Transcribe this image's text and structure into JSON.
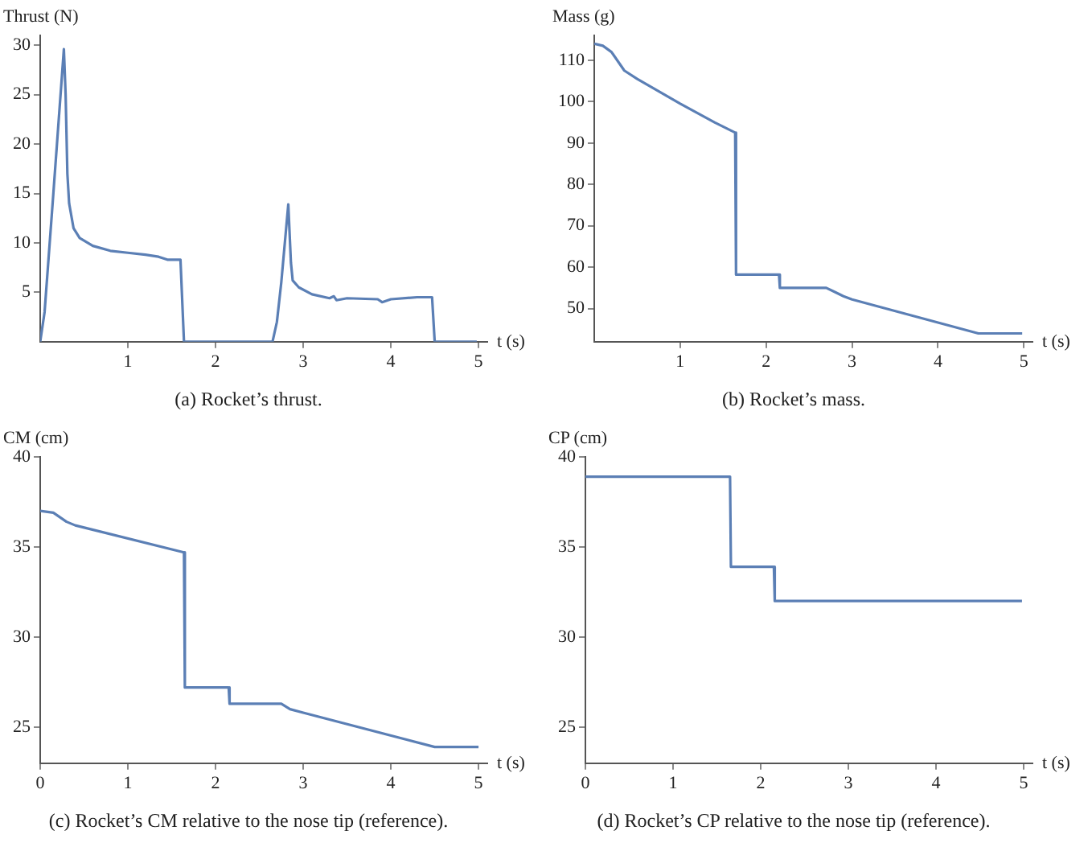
{
  "chart_data": [
    {
      "type": "line",
      "title": "(a) Rocket’s thrust.",
      "xlabel": "t (s)",
      "ylabel": "Thrust (N)",
      "xlim": [
        0,
        5.1
      ],
      "xticks": [
        1,
        2,
        3,
        4,
        5
      ],
      "ylim": [
        0,
        31
      ],
      "yticks": [
        5,
        10,
        15,
        20,
        25,
        30
      ],
      "series": [
        {
          "color": "#5b7fb5",
          "x": [
            0,
            0.05,
            0.15,
            0.27,
            0.29,
            0.31,
            0.33,
            0.38,
            0.45,
            0.6,
            0.8,
            1.0,
            1.2,
            1.35,
            1.45,
            1.6,
            1.64,
            2.65,
            2.7,
            2.75,
            2.83,
            2.86,
            2.88,
            2.95,
            3.1,
            3.3,
            3.35,
            3.38,
            3.5,
            3.85,
            3.9,
            4.0,
            4.3,
            4.47,
            4.5,
            4.98
          ],
          "values": [
            0,
            3,
            15,
            29.6,
            25,
            17,
            14,
            11.5,
            10.5,
            9.7,
            9.2,
            9.0,
            8.8,
            8.6,
            8.3,
            8.3,
            0,
            0,
            2,
            6,
            13.9,
            8,
            6.2,
            5.5,
            4.8,
            4.4,
            4.6,
            4.2,
            4.4,
            4.3,
            4.0,
            4.3,
            4.5,
            4.5,
            0,
            0
          ]
        }
      ]
    },
    {
      "type": "line",
      "title": "(b) Rocket’s mass.",
      "xlabel": "t (s)",
      "ylabel": "Mass (g)",
      "xlim": [
        0,
        5.1
      ],
      "xticks": [
        1,
        2,
        3,
        4,
        5
      ],
      "ylim": [
        42,
        116
      ],
      "yticks": [
        50,
        60,
        70,
        80,
        90,
        100,
        110
      ],
      "series": [
        {
          "color": "#5b7fb5",
          "x": [
            0,
            0.1,
            0.2,
            0.3,
            0.35,
            0.5,
            1.0,
            1.4,
            1.64,
            1.65,
            2.15,
            2.16,
            2.7,
            2.8,
            2.9,
            3.0,
            4.47,
            4.98
          ],
          "values": [
            114,
            113.5,
            112,
            109,
            107.5,
            105.5,
            99.5,
            95,
            92.5,
            58.2,
            58.2,
            55,
            55,
            54,
            53,
            52.2,
            44,
            44
          ]
        }
      ]
    },
    {
      "type": "line",
      "title": "(c) Rocket’s CM relative to the nose tip (reference).",
      "xlabel": "t (s)",
      "ylabel": "CM (cm)",
      "xlim": [
        0,
        5.1
      ],
      "xticks": [
        0,
        1,
        2,
        3,
        4,
        5
      ],
      "ylim": [
        23,
        40
      ],
      "yticks": [
        25,
        30,
        35,
        40
      ],
      "series": [
        {
          "color": "#5b7fb5",
          "x": [
            0,
            0.15,
            0.3,
            0.4,
            1.64,
            1.65,
            2.15,
            2.16,
            2.75,
            2.85,
            3.0,
            4.5,
            5.0
          ],
          "values": [
            37,
            36.9,
            36.4,
            36.2,
            34.7,
            27.2,
            27.2,
            26.3,
            26.3,
            26.0,
            25.8,
            23.9,
            23.9
          ]
        }
      ]
    },
    {
      "type": "line",
      "title": "(d) Rocket’s CP relative to the nose tip (reference).",
      "xlabel": "t (s)",
      "ylabel": "CP (cm)",
      "xlim": [
        0,
        5.1
      ],
      "xticks": [
        0,
        1,
        2,
        3,
        4,
        5
      ],
      "ylim": [
        23,
        40
      ],
      "yticks": [
        25,
        30,
        35,
        40
      ],
      "series": [
        {
          "color": "#5b7fb5",
          "x": [
            0,
            1.65,
            1.66,
            2.15,
            2.16,
            4.98
          ],
          "values": [
            38.9,
            38.9,
            33.9,
            33.9,
            32,
            32
          ]
        }
      ]
    }
  ]
}
